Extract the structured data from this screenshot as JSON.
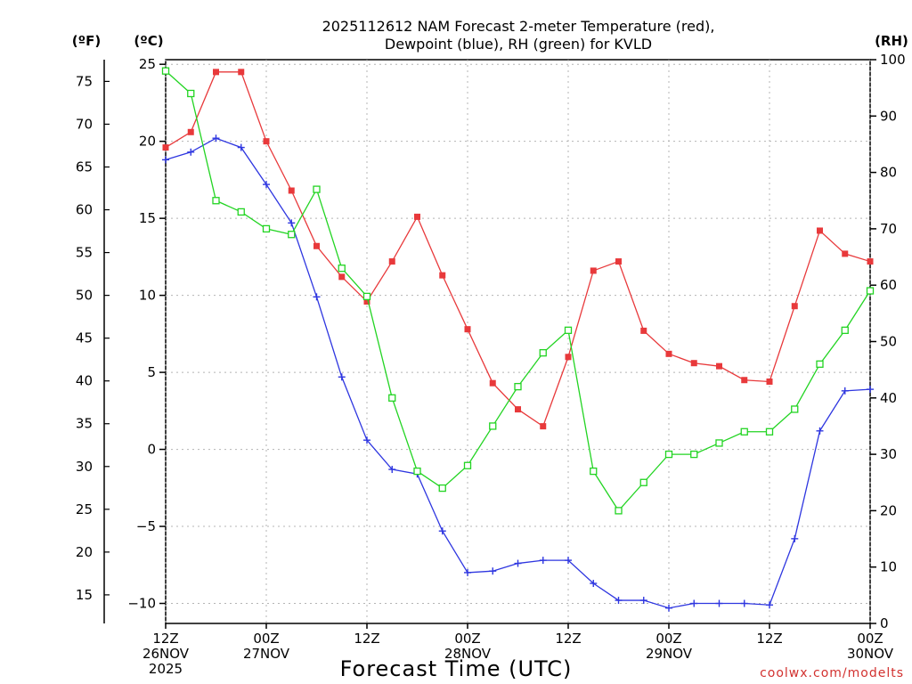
{
  "chart_data": {
    "type": "line",
    "title_line1": "2025112612 NAM Forecast 2-meter Temperature (red),",
    "title_line2": "Dewpoint (blue), RH (green) for KVLD",
    "xlabel": "Forecast Time (UTC)",
    "credit": "coolwx.com/modelts",
    "left_unit_f": "(ºF)",
    "left_unit_c": "(ºC)",
    "right_unit": "(RH)",
    "x_range_hours": [
      0,
      84
    ],
    "y_celsius_range": [
      -11.3,
      25.3
    ],
    "y_rh_range": [
      0,
      100
    ],
    "grid": "on",
    "y_celsius_ticks": [
      "25",
      "20",
      "15",
      "10",
      "5",
      "0",
      "−5",
      "−10"
    ],
    "y_fahrenheit_ticks": [
      "75",
      "70",
      "65",
      "60",
      "55",
      "50",
      "45",
      "40",
      "35",
      "30",
      "25",
      "20",
      "15"
    ],
    "y_rh_ticks": [
      "100",
      "90",
      "80",
      "70",
      "60",
      "50",
      "40",
      "30",
      "20",
      "10",
      "0"
    ],
    "x_tick_labels": [
      {
        "hour": 0,
        "lines": [
          "12Z",
          "26NOV",
          "2025"
        ]
      },
      {
        "hour": 12,
        "lines": [
          "00Z",
          "27NOV"
        ]
      },
      {
        "hour": 24,
        "lines": [
          "12Z"
        ]
      },
      {
        "hour": 36,
        "lines": [
          "00Z",
          "28NOV"
        ]
      },
      {
        "hour": 48,
        "lines": [
          "12Z"
        ]
      },
      {
        "hour": 60,
        "lines": [
          "00Z",
          "29NOV"
        ]
      },
      {
        "hour": 72,
        "lines": [
          "12Z"
        ]
      },
      {
        "hour": 84,
        "lines": [
          "00Z",
          "30NOV"
        ]
      }
    ],
    "series": [
      {
        "name": "Temperature",
        "color": "#e8393b",
        "marker": "filled-square",
        "axis": "celsius",
        "points": [
          [
            0,
            19.6
          ],
          [
            3,
            20.6
          ],
          [
            6,
            24.5
          ],
          [
            9,
            24.5
          ],
          [
            12,
            20.0
          ],
          [
            15,
            16.8
          ],
          [
            18,
            13.2
          ],
          [
            21,
            11.2
          ],
          [
            24,
            9.6
          ],
          [
            27,
            12.2
          ],
          [
            30,
            15.1
          ],
          [
            33,
            11.3
          ],
          [
            36,
            7.8
          ],
          [
            39,
            4.3
          ],
          [
            42,
            2.6
          ],
          [
            45,
            1.5
          ],
          [
            48,
            6.0
          ],
          [
            51,
            11.6
          ],
          [
            54,
            12.2
          ],
          [
            57,
            7.7
          ],
          [
            60,
            6.2
          ],
          [
            63,
            5.6
          ],
          [
            66,
            5.4
          ],
          [
            69,
            4.5
          ],
          [
            72,
            4.4
          ],
          [
            75,
            9.3
          ],
          [
            78,
            14.2
          ],
          [
            81,
            12.7
          ],
          [
            84,
            12.2
          ]
        ]
      },
      {
        "name": "Dewpoint",
        "color": "#2e36e0",
        "marker": "plus",
        "axis": "celsius",
        "points": [
          [
            0,
            18.8
          ],
          [
            3,
            19.3
          ],
          [
            6,
            20.2
          ],
          [
            9,
            19.6
          ],
          [
            12,
            17.2
          ],
          [
            15,
            14.7
          ],
          [
            18,
            9.9
          ],
          [
            21,
            4.7
          ],
          [
            24,
            0.6
          ],
          [
            27,
            -1.3
          ],
          [
            30,
            -1.6
          ],
          [
            33,
            -5.3
          ],
          [
            36,
            -8.0
          ],
          [
            39,
            -7.9
          ],
          [
            42,
            -7.4
          ],
          [
            45,
            -7.2
          ],
          [
            48,
            -7.2
          ],
          [
            51,
            -8.7
          ],
          [
            54,
            -9.8
          ],
          [
            57,
            -9.8
          ],
          [
            60,
            -10.3
          ],
          [
            63,
            -10.0
          ],
          [
            66,
            -10.0
          ],
          [
            69,
            -10.0
          ],
          [
            72,
            -10.1
          ],
          [
            75,
            -5.8
          ],
          [
            78,
            1.2
          ],
          [
            81,
            3.8
          ],
          [
            84,
            3.9
          ]
        ]
      },
      {
        "name": "RH",
        "color": "#22d422",
        "marker": "open-square",
        "axis": "rh",
        "points": [
          [
            0,
            98
          ],
          [
            3,
            94
          ],
          [
            6,
            75
          ],
          [
            9,
            73
          ],
          [
            12,
            70
          ],
          [
            15,
            69
          ],
          [
            18,
            77
          ],
          [
            21,
            63
          ],
          [
            24,
            58
          ],
          [
            27,
            40
          ],
          [
            30,
            27
          ],
          [
            33,
            24
          ],
          [
            36,
            28
          ],
          [
            39,
            35
          ],
          [
            42,
            42
          ],
          [
            45,
            48
          ],
          [
            48,
            52
          ],
          [
            51,
            27
          ],
          [
            54,
            20
          ],
          [
            57,
            25
          ],
          [
            60,
            30
          ],
          [
            63,
            30
          ],
          [
            66,
            32
          ],
          [
            69,
            34
          ],
          [
            72,
            34
          ],
          [
            75,
            38
          ],
          [
            78,
            46
          ],
          [
            81,
            52
          ],
          [
            84,
            59
          ]
        ]
      }
    ]
  }
}
